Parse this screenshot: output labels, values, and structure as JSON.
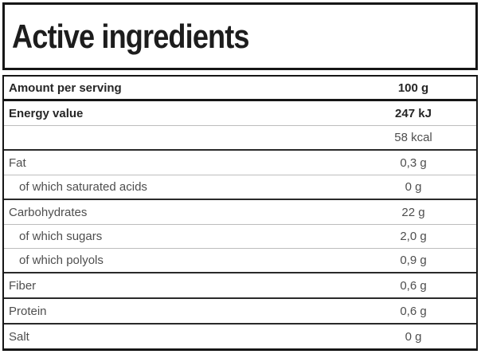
{
  "title": "Active ingredients",
  "table": {
    "header": {
      "label": "Amount per serving",
      "value": "100 g"
    },
    "groups": [
      {
        "rows": [
          {
            "label": "Energy value",
            "value": "247 kJ"
          },
          {
            "label": "",
            "value": "58 kcal"
          }
        ]
      },
      {
        "rows": [
          {
            "label": "Fat",
            "value": "0,3 g"
          },
          {
            "label": "of which saturated acids",
            "value": "0 g"
          }
        ]
      },
      {
        "rows": [
          {
            "label": "Carbohydrates",
            "value": "22 g"
          },
          {
            "label": "of which sugars",
            "value": "2,0 g"
          },
          {
            "label": "of which polyols",
            "value": "0,9 g"
          }
        ]
      },
      {
        "rows": [
          {
            "label": "Fiber",
            "value": "0,6 g"
          }
        ]
      },
      {
        "rows": [
          {
            "label": "Protein",
            "value": "0,6 g"
          }
        ]
      },
      {
        "rows": [
          {
            "label": "Salt",
            "value": "0 g"
          }
        ]
      }
    ]
  },
  "colors": {
    "border_dark": "#161616",
    "group_separator": "#2a2a2a",
    "light_separator": "#bdbdbd",
    "text_bold": "#262626",
    "text_regular": "#4e4e4e",
    "background": "#ffffff"
  }
}
